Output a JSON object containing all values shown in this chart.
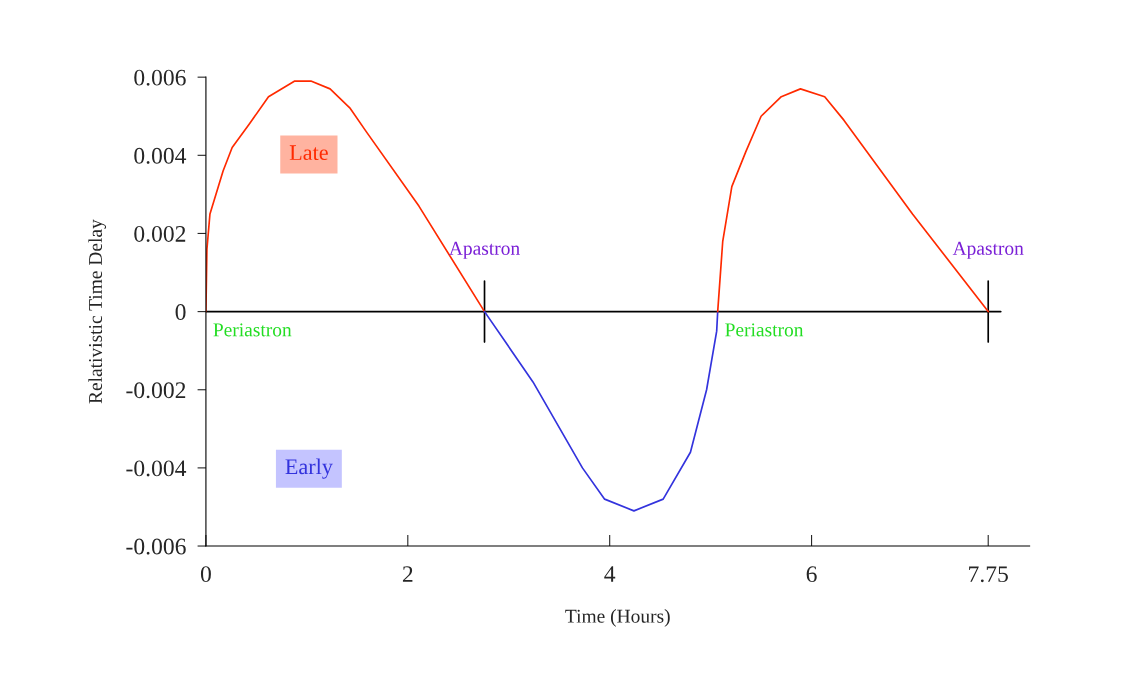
{
  "chart_data": {
    "type": "line",
    "xlabel": "Time (Hours)",
    "ylabel": "Relativistic Time Delay",
    "xlim": [
      0,
      8.16
    ],
    "xticks": [
      0,
      2,
      4,
      6,
      7.75
    ],
    "ylim": [
      -0.006,
      0.006
    ],
    "yticks": [
      -0.006,
      -0.004,
      -0.002,
      0,
      0.002,
      0.004,
      0.006
    ],
    "grid": false,
    "legend": false,
    "marker": "none",
    "line_style": "solid",
    "series": [
      {
        "color": "#ff2a00",
        "x": [
          0,
          0.01,
          0.04,
          0.17,
          0.26,
          0.43,
          0.62,
          0.88,
          1.04,
          1.23,
          1.43,
          1.59,
          2.11,
          2.76
        ],
        "values": [
          0,
          0.0016,
          0.0025,
          0.0036,
          0.0042,
          0.0048,
          0.0055,
          0.0059,
          0.0059,
          0.0057,
          0.0052,
          0.0046,
          0.0027,
          0
        ]
      },
      {
        "color": "#3333dd",
        "x": [
          2.76,
          3.24,
          3.73,
          3.95,
          4.24,
          4.53,
          4.8,
          4.96,
          5.06,
          5.07
        ],
        "values": [
          0,
          -0.0018,
          -0.004,
          -0.0048,
          -0.0051,
          -0.0048,
          -0.0036,
          -0.002,
          -0.0005,
          0
        ]
      },
      {
        "color": "#ff2a00",
        "x": [
          5.07,
          5.12,
          5.21,
          5.35,
          5.5,
          5.7,
          5.89,
          6.13,
          6.32,
          7.0,
          7.75
        ],
        "values": [
          0,
          0.0018,
          0.0032,
          0.0041,
          0.005,
          0.0055,
          0.0057,
          0.0055,
          0.0049,
          0.0025,
          0
        ]
      }
    ],
    "ref_lines": [
      {
        "axis": "y",
        "value": 0,
        "color": "#000000"
      },
      {
        "axis": "x",
        "value": 2.76,
        "color": "#000000"
      },
      {
        "axis": "x",
        "value": 7.75,
        "color": "#000000"
      }
    ],
    "annotations": [
      "Late",
      "Early",
      {
        "text": "Periastron",
        "x": 0,
        "y": 0
      },
      {
        "text": "Apastron",
        "x": 2.76,
        "y": 0
      },
      {
        "text": "Periastron",
        "x": 5.07,
        "y": 0
      },
      {
        "text": "Apastron",
        "x": 7.75,
        "y": 0
      }
    ]
  }
}
